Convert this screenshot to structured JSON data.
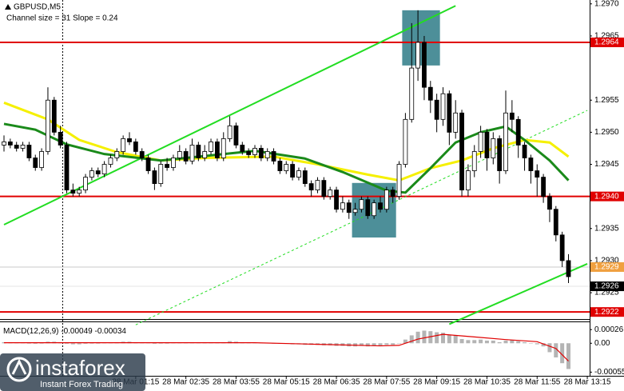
{
  "chart_data": {
    "type": "candlestick",
    "title": "GBPUSD,M5",
    "subtitle": "Channel size = 31 Slope = 0.24",
    "candle_color": "#000000",
    "ylim": [
      1.29209,
      1.29706
    ],
    "yticks": [
      {
        "value": 1.297,
        "label": "1.2970"
      },
      1.2965,
      1.2955,
      {
        "value": 1.295,
        "label": "1.2950"
      },
      1.2945,
      1.2935,
      {
        "value": 1.293,
        "label": "1.2930"
      },
      1.2925
    ],
    "xticks": [
      {
        "value": 21,
        "label": "28 Mar 01:15"
      },
      {
        "value": 29,
        "label": "28 Mar 02:35"
      },
      {
        "value": 37,
        "label": "28 Mar 03:55"
      },
      {
        "value": 45,
        "label": "28 Mar 05:15"
      },
      {
        "value": 53,
        "label": "28 Mar 06:35"
      },
      {
        "value": 61,
        "label": "28 Mar 07:55"
      },
      {
        "value": 69,
        "label": "28 Mar 09:15"
      },
      {
        "value": 77,
        "label": "28 Mar 10:35"
      },
      {
        "value": 85,
        "label": "28 Mar 11:55"
      },
      {
        "value": 93,
        "label": "28 Mar 13:15"
      }
    ],
    "candles": [
      [
        1.2948,
        1.29495,
        1.2947,
        1.29485
      ],
      [
        1.29485,
        1.2949,
        1.29475,
        1.2948
      ],
      [
        1.2948,
        1.29485,
        1.2947,
        1.29475
      ],
      [
        1.29475,
        1.29485,
        1.2947,
        1.2948
      ],
      [
        1.2948,
        1.29485,
        1.29455,
        1.2946
      ],
      [
        1.2946,
        1.29465,
        1.2944,
        1.29445
      ],
      [
        1.29445,
        1.29475,
        1.2944,
        1.2947
      ],
      [
        1.2947,
        1.2957,
        1.29465,
        1.2955
      ],
      [
        1.2955,
        1.29555,
        1.29495,
        1.295
      ],
      [
        1.295,
        1.2951,
        1.29475,
        1.2948
      ],
      [
        1.2948,
        1.29485,
        1.29405,
        1.2941
      ],
      [
        1.2941,
        1.2942,
        1.294,
        1.29405
      ],
      [
        1.29405,
        1.29415,
        1.294,
        1.2941
      ],
      [
        1.2941,
        1.29435,
        1.29405,
        1.2943
      ],
      [
        1.2943,
        1.29445,
        1.29425,
        1.2944
      ],
      [
        1.2944,
        1.29445,
        1.2943,
        1.29435
      ],
      [
        1.29435,
        1.29455,
        1.2943,
        1.2945
      ],
      [
        1.2945,
        1.29465,
        1.29445,
        1.2946
      ],
      [
        1.2946,
        1.29475,
        1.29455,
        1.2947
      ],
      [
        1.2947,
        1.29495,
        1.29465,
        1.2949
      ],
      [
        1.2949,
        1.295,
        1.2948,
        1.29485
      ],
      [
        1.29485,
        1.2949,
        1.29465,
        1.2947
      ],
      [
        1.2947,
        1.29475,
        1.29455,
        1.2946
      ],
      [
        1.2946,
        1.29465,
        1.29435,
        1.2944
      ],
      [
        1.2944,
        1.29445,
        1.2941,
        1.2942
      ],
      [
        1.2942,
        1.29455,
        1.29415,
        1.2945
      ],
      [
        1.2945,
        1.2946,
        1.2944,
        1.29445
      ],
      [
        1.29445,
        1.29465,
        1.2944,
        1.2946
      ],
      [
        1.2946,
        1.2948,
        1.29455,
        1.2947
      ],
      [
        1.2947,
        1.29475,
        1.2945,
        1.29455
      ],
      [
        1.29455,
        1.2949,
        1.2945,
        1.2948
      ],
      [
        1.2948,
        1.29485,
        1.29455,
        1.2946
      ],
      [
        1.2946,
        1.2948,
        1.29455,
        1.2947
      ],
      [
        1.2947,
        1.2949,
        1.29465,
        1.29485
      ],
      [
        1.29485,
        1.2949,
        1.29455,
        1.2946
      ],
      [
        1.2946,
        1.295,
        1.29455,
        1.2949
      ],
      [
        1.2949,
        1.29525,
        1.29485,
        1.2951
      ],
      [
        1.2951,
        1.29515,
        1.29475,
        1.2948
      ],
      [
        1.2948,
        1.29485,
        1.29465,
        1.2947
      ],
      [
        1.2947,
        1.29475,
        1.2946,
        1.29465
      ],
      [
        1.29465,
        1.2948,
        1.2946,
        1.29475
      ],
      [
        1.29475,
        1.2948,
        1.29455,
        1.2946
      ],
      [
        1.2946,
        1.29475,
        1.29455,
        1.2947
      ],
      [
        1.2947,
        1.29475,
        1.2945,
        1.29455
      ],
      [
        1.29455,
        1.2946,
        1.29435,
        1.2944
      ],
      [
        1.2944,
        1.29455,
        1.29435,
        1.2945
      ],
      [
        1.2945,
        1.29455,
        1.29425,
        1.2943
      ],
      [
        1.2943,
        1.29445,
        1.29425,
        1.2944
      ],
      [
        1.2944,
        1.29445,
        1.29415,
        1.2942
      ],
      [
        1.2942,
        1.29425,
        1.294,
        1.2941
      ],
      [
        1.2941,
        1.2943,
        1.29405,
        1.29425
      ],
      [
        1.29425,
        1.2943,
        1.29395,
        1.294
      ],
      [
        1.294,
        1.29415,
        1.29395,
        1.2941
      ],
      [
        1.2941,
        1.29415,
        1.29375,
        1.2938
      ],
      [
        1.2938,
        1.294,
        1.29375,
        1.2939
      ],
      [
        1.2939,
        1.29395,
        1.29365,
        1.29375
      ],
      [
        1.29375,
        1.2939,
        1.2937,
        1.2938
      ],
      [
        1.2938,
        1.294,
        1.29375,
        1.29395
      ],
      [
        1.29395,
        1.294,
        1.29365,
        1.2937
      ],
      [
        1.2937,
        1.29395,
        1.29365,
        1.2939
      ],
      [
        1.2939,
        1.294,
        1.29375,
        1.2938
      ],
      [
        1.2938,
        1.29415,
        1.29375,
        1.2941
      ],
      [
        1.2941,
        1.29415,
        1.2939,
        1.294
      ],
      [
        1.294,
        1.29455,
        1.29395,
        1.2945
      ],
      [
        1.2945,
        1.2953,
        1.29445,
        1.2952
      ],
      [
        1.2952,
        1.2967,
        1.29515,
        1.296
      ],
      [
        1.296,
        1.2969,
        1.2958,
        1.2964
      ],
      [
        1.2964,
        1.2965,
        1.2955,
        1.2957
      ],
      [
        1.2957,
        1.2958,
        1.2953,
        1.2955
      ],
      [
        1.2955,
        1.2956,
        1.295,
        1.2952
      ],
      [
        1.2952,
        1.2957,
        1.2951,
        1.2956
      ],
      [
        1.2956,
        1.29565,
        1.2948,
        1.295
      ],
      [
        1.295,
        1.2955,
        1.2949,
        1.2953
      ],
      [
        1.2953,
        1.29535,
        1.294,
        1.2941
      ],
      [
        1.2941,
        1.2945,
        1.294,
        1.2944
      ],
      [
        1.2944,
        1.2948,
        1.2943,
        1.2947
      ],
      [
        1.2947,
        1.2951,
        1.2946,
        1.295
      ],
      [
        1.295,
        1.29505,
        1.2944,
        1.2946
      ],
      [
        1.2946,
        1.295,
        1.2945,
        1.2949
      ],
      [
        1.2949,
        1.29495,
        1.2942,
        1.2944
      ],
      [
        1.2944,
        1.29565,
        1.29435,
        1.2953
      ],
      [
        1.2953,
        1.2955,
        1.295,
        1.2952
      ],
      [
        1.2952,
        1.29525,
        1.2946,
        1.2948
      ],
      [
        1.2948,
        1.29485,
        1.2944,
        1.2946
      ],
      [
        1.2946,
        1.29465,
        1.2942,
        1.2944
      ],
      [
        1.2944,
        1.2945,
        1.294,
        1.2943
      ],
      [
        1.2943,
        1.29435,
        1.2939,
        1.294
      ],
      [
        1.294,
        1.29405,
        1.2936,
        1.2938
      ],
      [
        1.2938,
        1.29385,
        1.2933,
        1.2934
      ],
      [
        1.2934,
        1.29345,
        1.2929,
        1.293
      ],
      [
        1.293,
        1.2931,
        1.29265,
        1.29275
      ]
    ],
    "moving_averages": [
      {
        "color": "#f5f000",
        "width": 3,
        "x": [
          0,
          7,
          12,
          18,
          25,
          32,
          43,
          50,
          58,
          63,
          68,
          73,
          78,
          83,
          87,
          90
        ],
        "values": [
          1.29546,
          1.2952,
          1.29488,
          1.29469,
          1.29456,
          1.2946,
          1.29462,
          1.2945,
          1.29434,
          1.29425,
          1.29444,
          1.29456,
          1.29475,
          1.29488,
          1.29484,
          1.29462
        ]
      },
      {
        "color": "#1a8a1a",
        "width": 3,
        "x": [
          0,
          5,
          10,
          16,
          25,
          32,
          40,
          48,
          54,
          61,
          64,
          68,
          72,
          76,
          80,
          83,
          87,
          90
        ],
        "values": [
          1.29513,
          1.29504,
          1.29481,
          1.29466,
          1.29456,
          1.29463,
          1.29471,
          1.29459,
          1.29438,
          1.29409,
          1.29406,
          1.29444,
          1.29484,
          1.295,
          1.29509,
          1.29488,
          1.29456,
          1.29425
        ]
      }
    ],
    "channel_lines": [
      {
        "color": "#22dd22",
        "dashed": false,
        "x": [
          0,
          72
        ],
        "values": [
          1.29356,
          1.29697
        ]
      },
      {
        "color": "#22dd22",
        "dashed": true,
        "x": [
          21,
          93
        ],
        "values": [
          1.292,
          1.29534
        ]
      },
      {
        "color": "#22dd22",
        "dashed": false,
        "x": [
          71,
          93
        ],
        "values": [
          1.29201,
          1.29295
        ]
      }
    ],
    "zones": [
      {
        "color": "#4d8f99",
        "x": [
          64,
          69
        ],
        "y": [
          1.29604,
          1.2969
        ]
      },
      {
        "color": "#4d8f99",
        "x": [
          56,
          62
        ],
        "y": [
          1.29336,
          1.29421
        ]
      }
    ],
    "levels": [
      {
        "value": 1.2964,
        "label": "1.2964",
        "color": "#e00000",
        "box": "#e00000"
      },
      {
        "value": 1.294,
        "label": "1.2940",
        "color": "#e00000",
        "box": "#e00000"
      },
      {
        "value": 1.2929,
        "label": "1.2929",
        "color": "#c8c8c8",
        "box": "#f0a040"
      },
      {
        "value": 1.2926,
        "label": "1.2926",
        "color": "#e4e4e4",
        "box": "#000000"
      },
      {
        "value": 1.2922,
        "label": "1.2922",
        "color": "#e00000",
        "box": "#e00000"
      }
    ],
    "macd": {
      "title": "MACD(12,26,9)",
      "main": -0.00049,
      "signal_value": -0.00034,
      "ylim": [
        -0.00062,
        0.0004
      ],
      "yticks": [
        0.00026,
        {
          "value": 0,
          "label": "0.00"
        },
        -0.00055
      ],
      "histogram_color": "#b4b4b4",
      "values": [
        2e-05,
        2e-05,
        1e-05,
        1e-05,
        0,
        -1e-05,
        0,
        3e-05,
        3e-05,
        2e-05,
        -1e-05,
        -2e-05,
        -2e-05,
        -1e-05,
        0,
        0,
        1e-05,
        1e-05,
        2e-05,
        3e-05,
        3e-05,
        2e-05,
        2e-05,
        1e-05,
        -1e-05,
        0,
        0,
        1e-05,
        1e-05,
        1e-05,
        2e-05,
        1e-05,
        2e-05,
        2e-05,
        1e-05,
        2e-05,
        4e-05,
        3e-05,
        2e-05,
        1e-05,
        1e-05,
        1e-05,
        1e-05,
        0,
        -1e-05,
        -1e-05,
        -2e-05,
        -2e-05,
        -3e-05,
        -3e-05,
        -3e-05,
        -4e-05,
        -4e-05,
        -5e-05,
        -5e-05,
        -6e-05,
        -6e-05,
        -5e-05,
        -6e-05,
        -5e-05,
        -5e-05,
        -3e-05,
        -3e-05,
        0,
        7e-05,
        0.00015,
        0.00022,
        0.00024,
        0.00023,
        0.00021,
        0.0002,
        0.00016,
        0.00015,
        8e-05,
        6e-05,
        6e-05,
        7e-05,
        5e-05,
        5e-05,
        2e-05,
        5e-05,
        6e-05,
        4e-05,
        2e-05,
        0,
        -2e-05,
        -6e-05,
        -0.00017,
        -0.00027,
        -0.00038,
        -0.00049
      ],
      "signal": {
        "color": "#e00000",
        "x": [
          0,
          10,
          20,
          30,
          40,
          50,
          60,
          63,
          66,
          70,
          75,
          80,
          85,
          88,
          90
        ],
        "values": [
          1e-05,
          1e-05,
          1e-05,
          1e-05,
          1e-05,
          -2e-05,
          -5e-05,
          -4e-05,
          8e-05,
          0.00017,
          0.00012,
          7e-05,
          3e-05,
          -0.0001,
          -0.00034
        ]
      }
    }
  },
  "watermark": {
    "name": "instaforex",
    "tagline": "Instant Forex Trading"
  }
}
